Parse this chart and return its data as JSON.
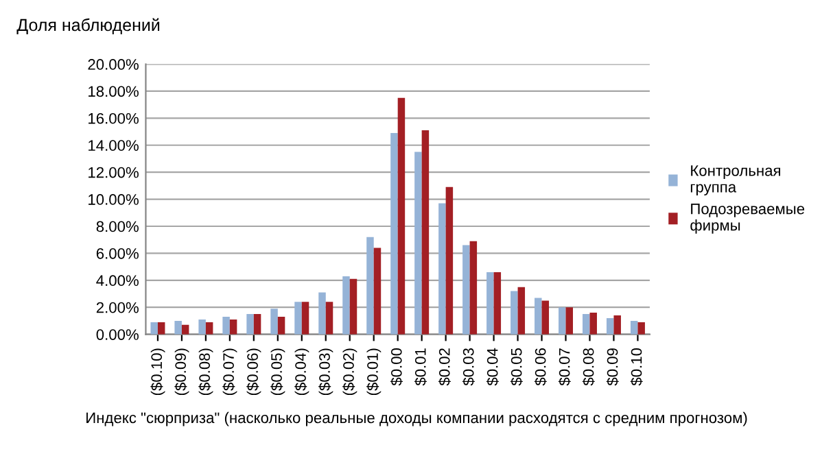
{
  "chart_data": {
    "type": "bar",
    "title": "Доля наблюдений",
    "xlabel": "Индекс \"сюрприза\" (насколько реальные доходы компании расходятся с средним прогнозом)",
    "categories": [
      "($0.10)",
      "($0.09)",
      "($0.08)",
      "($0.07)",
      "($0.06)",
      "($0.05)",
      "($0.04)",
      "($0.03)",
      "($0.02)",
      "($0.01)",
      "$0.00",
      "$0.01",
      "$0.02",
      "$0.03",
      "$0.04",
      "$0.05",
      "$0.06",
      "$0.07",
      "$0.08",
      "$0.09",
      "$0.10"
    ],
    "series": [
      {
        "name": "Контрольная группа",
        "color": "#95b3d7",
        "values": [
          0.9,
          1.0,
          1.1,
          1.3,
          1.5,
          1.9,
          2.4,
          3.1,
          4.3,
          7.2,
          14.9,
          13.5,
          9.7,
          6.6,
          4.6,
          3.2,
          2.7,
          2.0,
          1.5,
          1.2,
          1.0
        ]
      },
      {
        "name": "Подозреваемые фирмы",
        "color": "#a31f24",
        "values": [
          0.9,
          0.7,
          0.9,
          1.1,
          1.5,
          1.3,
          2.4,
          2.4,
          4.1,
          6.4,
          17.5,
          15.1,
          10.9,
          6.9,
          4.6,
          3.5,
          2.5,
          2.0,
          1.6,
          1.4,
          0.9
        ]
      }
    ],
    "ylim": [
      0,
      20
    ],
    "yticks": [
      {
        "value": 0,
        "label": "0.00%"
      },
      {
        "value": 2,
        "label": "2.00%"
      },
      {
        "value": 4,
        "label": "4.00%"
      },
      {
        "value": 6,
        "label": "6.00%"
      },
      {
        "value": 8,
        "label": "8.00%"
      },
      {
        "value": 10,
        "label": "10.00%"
      },
      {
        "value": 12,
        "label": "12.00%"
      },
      {
        "value": 14,
        "label": "14.00%"
      },
      {
        "value": 16,
        "label": "16.00%"
      },
      {
        "value": 18,
        "label": "18.00%"
      },
      {
        "value": 20,
        "label": "20.00%"
      }
    ],
    "grid": "y",
    "legend": "right"
  }
}
